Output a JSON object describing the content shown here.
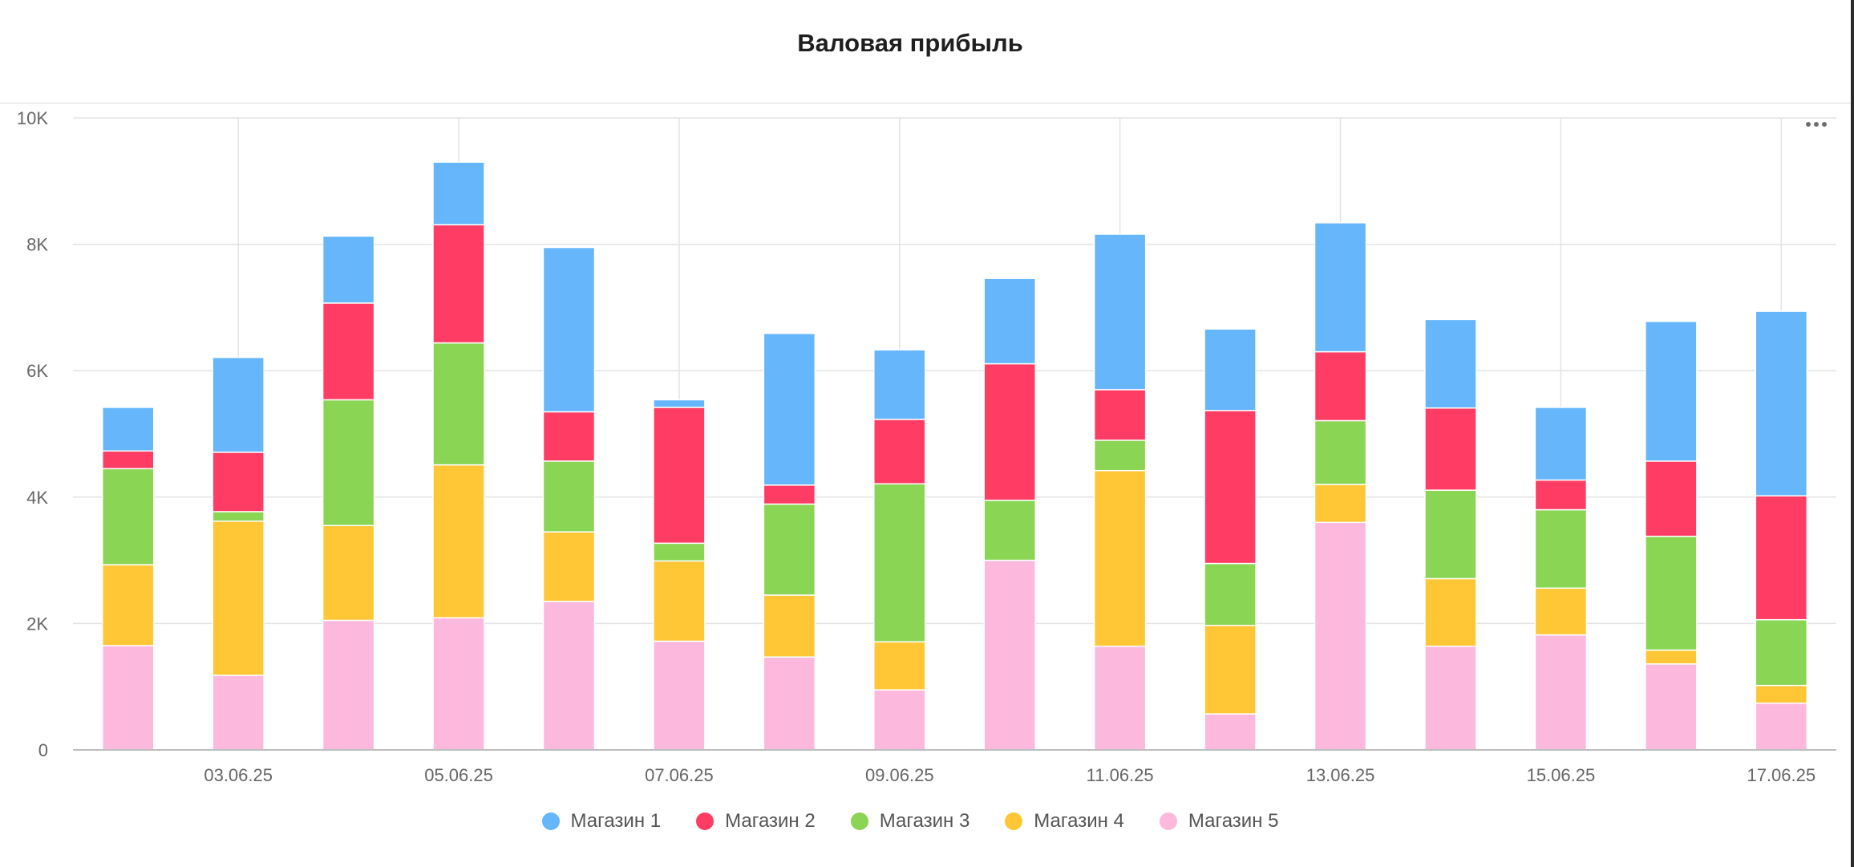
{
  "title": "Валовая прибыль",
  "chart_data": {
    "type": "bar",
    "stacked": true,
    "title": "Валовая прибыль",
    "xlabel": "",
    "ylabel": "",
    "ylim": [
      0,
      10000
    ],
    "grid": true,
    "legend_position": "bottom",
    "y_ticks": [
      {
        "value": 0,
        "label": "0"
      },
      {
        "value": 2000,
        "label": "2K"
      },
      {
        "value": 4000,
        "label": "4K"
      },
      {
        "value": 6000,
        "label": "6K"
      },
      {
        "value": 8000,
        "label": "8K"
      },
      {
        "value": 10000,
        "label": "10K"
      }
    ],
    "categories": [
      "02.06.25",
      "03.06.25",
      "04.06.25",
      "05.06.25",
      "06.06.25",
      "07.06.25",
      "08.06.25",
      "09.06.25",
      "10.06.25",
      "11.06.25",
      "12.06.25",
      "13.06.25",
      "14.06.25",
      "15.06.25",
      "16.06.25",
      "17.06.25"
    ],
    "x_tick_labels": [
      "03.06.25",
      "05.06.25",
      "07.06.25",
      "09.06.25",
      "11.06.25",
      "13.06.25",
      "15.06.25",
      "17.06.25"
    ],
    "series": [
      {
        "name": "Магазин 5",
        "color": "#fdb8de",
        "values": [
          1650,
          1180,
          2050,
          2090,
          2350,
          1720,
          1470,
          950,
          3000,
          1640,
          570,
          3600,
          1640,
          1820,
          1360,
          740
        ]
      },
      {
        "name": "Магазин 4",
        "color": "#ffc636",
        "values": [
          1280,
          2440,
          1500,
          2420,
          1100,
          1270,
          980,
          760,
          0,
          2780,
          1400,
          600,
          1070,
          740,
          220,
          280
        ]
      },
      {
        "name": "Магазин 3",
        "color": "#8ad554",
        "values": [
          1520,
          150,
          1990,
          1930,
          1120,
          280,
          1440,
          2500,
          950,
          480,
          980,
          1010,
          1400,
          1240,
          1800,
          1040
        ]
      },
      {
        "name": "Магазин 2",
        "color": "#ff3d64",
        "values": [
          280,
          940,
          1530,
          1870,
          780,
          2150,
          300,
          1020,
          2160,
          800,
          2420,
          1090,
          1300,
          470,
          1190,
          1960
        ]
      },
      {
        "name": "Магазин 1",
        "color": "#65b6fa",
        "values": [
          690,
          1500,
          1060,
          990,
          2600,
          120,
          2400,
          1100,
          1350,
          2460,
          1290,
          2040,
          1400,
          1150,
          2210,
          2920
        ]
      }
    ]
  },
  "legend": [
    {
      "label": "Магазин 1",
      "color": "#65b6fa"
    },
    {
      "label": "Магазин 2",
      "color": "#ff3d64"
    },
    {
      "label": "Магазин 3",
      "color": "#8ad554"
    },
    {
      "label": "Магазин 4",
      "color": "#ffc636"
    },
    {
      "label": "Магазин 5",
      "color": "#fdb8de"
    }
  ],
  "menu_icon": "more-horizontal-icon"
}
